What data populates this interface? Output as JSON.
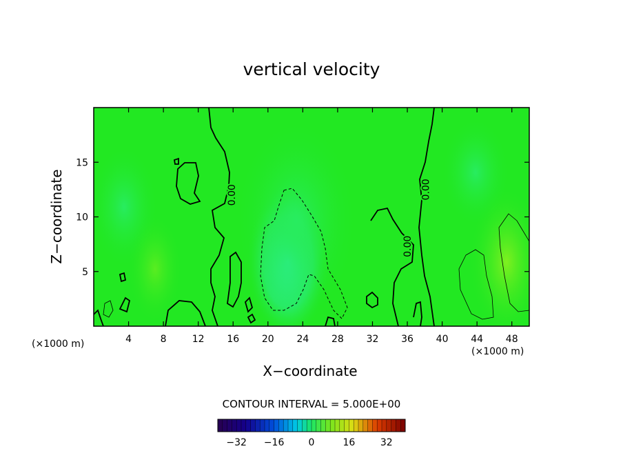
{
  "chart_data": {
    "type": "heatmap",
    "title": "vertical velocity",
    "xlabel": "X−coordinate",
    "ylabel": "Z−coordinate",
    "x_unit_label": "(×1000 m)",
    "xlim": [
      0,
      50
    ],
    "ylim": [
      0,
      20
    ],
    "x_ticks": [
      4,
      8,
      12,
      16,
      20,
      24,
      28,
      32,
      36,
      40,
      44,
      48
    ],
    "y_ticks": [
      5,
      10,
      15
    ],
    "contour_interval_text": "CONTOUR INTERVAL = 5.000E+00",
    "contour_labels": [
      {
        "text": "0.00",
        "x": 16.2,
        "y": 12.0
      },
      {
        "text": "0.00",
        "x": 36.4,
        "y": 7.3
      },
      {
        "text": "0.00",
        "x": 38.5,
        "y": 12.5
      }
    ],
    "colorbar": {
      "ticks": [
        -32,
        -16,
        0,
        16,
        32
      ],
      "tick_labels": [
        "−32",
        "−16",
        "0",
        "16",
        "32"
      ],
      "range": [
        -40,
        40
      ]
    },
    "colors": {
      "background_field": "#22e822",
      "downdraft_core": "#30f0c0",
      "updraft_zone": "#70f020"
    }
  }
}
